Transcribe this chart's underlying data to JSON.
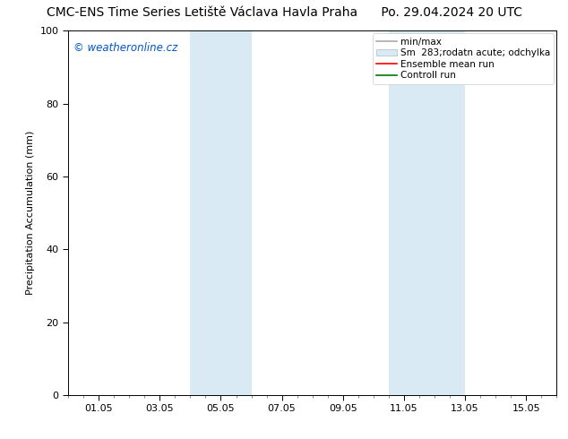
{
  "title_left": "CMC-ENS Time Series Letiště Václava Havla Praha",
  "title_right": "Po. 29.04.2024 20 UTC",
  "ylabel": "Precipitation Accumulation (mm)",
  "watermark": "© weatheronline.cz",
  "watermark_color": "#0055cc",
  "ylim": [
    0,
    100
  ],
  "xlim_start": 0,
  "xlim_end": 16,
  "xtick_labels": [
    "01.05",
    "03.05",
    "05.05",
    "07.05",
    "09.05",
    "11.05",
    "13.05",
    "15.05"
  ],
  "xtick_positions": [
    1,
    3,
    5,
    7,
    9,
    11,
    13,
    15
  ],
  "ytick_labels": [
    "0",
    "20",
    "40",
    "60",
    "80",
    "100"
  ],
  "ytick_positions": [
    0,
    20,
    40,
    60,
    80,
    100
  ],
  "shaded_bands": [
    {
      "x_start": 4.0,
      "x_end": 6.0
    },
    {
      "x_start": 10.5,
      "x_end": 13.0
    }
  ],
  "shade_color": "#daeaf5",
  "legend_labels": [
    "min/max",
    "Sm  283;rodatn acute; odchylka",
    "Ensemble mean run",
    "Controll run"
  ],
  "legend_line_color": "#aaaaaa",
  "legend_patch_color": "#daeaf5",
  "legend_patch_edge": "#aabbcc",
  "legend_red": "#ff0000",
  "legend_green": "#007700",
  "bg_color": "#ffffff",
  "spine_color": "#000000",
  "title_fontsize": 10,
  "tick_fontsize": 8,
  "ylabel_fontsize": 8,
  "legend_fontsize": 7.5
}
